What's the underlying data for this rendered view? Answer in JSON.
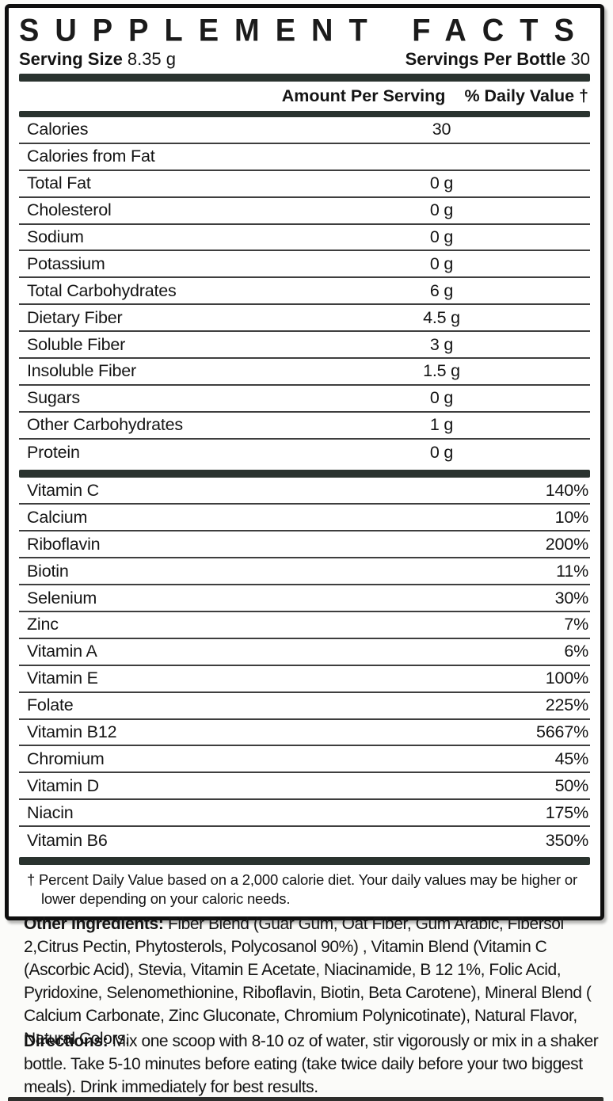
{
  "colors": {
    "bar": "#2a332f",
    "border": "#0f0f0f",
    "text": "#141414"
  },
  "panel": {
    "title": "SUPPLEMENT FACTS",
    "serving_size": {
      "label": "Serving Size",
      "value": "8.35 g"
    },
    "servings_per_bottle": {
      "label": "Servings Per Bottle",
      "value": "30"
    },
    "columns": {
      "amount": "Amount Per Serving",
      "daily_value": "% Daily Value †"
    },
    "nutrient_rows": [
      {
        "label": "Calories",
        "amount": "30",
        "dv": ""
      },
      {
        "label": "Calories from Fat",
        "amount": "",
        "dv": ""
      },
      {
        "label": "Total Fat",
        "amount": "0 g",
        "dv": ""
      },
      {
        "label": "Cholesterol",
        "amount": "0 g",
        "dv": ""
      },
      {
        "label": "Sodium",
        "amount": "0 g",
        "dv": ""
      },
      {
        "label": "Potassium",
        "amount": "0 g",
        "dv": ""
      },
      {
        "label": "Total Carbohydrates",
        "amount": "6 g",
        "dv": ""
      },
      {
        "label": "Dietary Fiber",
        "amount": "4.5 g",
        "dv": ""
      },
      {
        "label": "Soluble Fiber",
        "amount": "3 g",
        "dv": ""
      },
      {
        "label": "Insoluble Fiber",
        "amount": "1.5 g",
        "dv": ""
      },
      {
        "label": "Sugars",
        "amount": "0 g",
        "dv": ""
      },
      {
        "label": "Other Carbohydrates",
        "amount": "1 g",
        "dv": ""
      },
      {
        "label": "Protein",
        "amount": "0 g",
        "dv": ""
      }
    ],
    "vitamin_rows": [
      {
        "label": "Vitamin C",
        "amount": "",
        "dv": "140%"
      },
      {
        "label": "Calcium",
        "amount": "",
        "dv": "10%"
      },
      {
        "label": "Riboflavin",
        "amount": "",
        "dv": "200%"
      },
      {
        "label": "Biotin",
        "amount": "",
        "dv": "11%"
      },
      {
        "label": "Selenium",
        "amount": "",
        "dv": "30%"
      },
      {
        "label": "Zinc",
        "amount": "",
        "dv": "7%"
      },
      {
        "label": "Vitamin A",
        "amount": "",
        "dv": "6%"
      },
      {
        "label": "Vitamin E",
        "amount": "",
        "dv": "100%"
      },
      {
        "label": "Folate",
        "amount": "",
        "dv": "225%"
      },
      {
        "label": "Vitamin B12",
        "amount": "",
        "dv": "5667%"
      },
      {
        "label": "Chromium",
        "amount": "",
        "dv": "45%"
      },
      {
        "label": "Vitamin D",
        "amount": "",
        "dv": "50%"
      },
      {
        "label": "Niacin",
        "amount": "",
        "dv": "175%"
      },
      {
        "label": "Vitamin B6",
        "amount": "",
        "dv": "350%"
      }
    ],
    "footnote": "† Percent Daily Value based on a 2,000 calorie diet. Your daily values may be higher or lower depending on your caloric needs."
  },
  "other_ingredients": {
    "heading": "Other Ingredients:",
    "text": "Fiber Blend (Guar Gum, Oat Fiber, Gum Arabic, Fibersol 2,Citrus Pectin, Phytosterols, Polycosanol 90%) , Vitamin Blend  (Vitamin C (Ascorbic Acid), Stevia, Vitamin E Acetate, Niacinamide, B 12 1%, Folic Acid, Pyridoxine, Selenomethionine, Riboflavin, Biotin, Beta Carotene), Mineral Blend ( Calcium Carbonate, Zinc Gluconate, Chromium Polynicotinate), Natural Flavor, Natural Colors."
  },
  "directions": {
    "heading": "Directions:",
    "text": "Mix one scoop with 8-10 oz of water, stir vigorously or mix in a shaker bottle. Take 5-10 minutes before eating (take twice daily before your two biggest meals). Drink immediately for best results."
  }
}
